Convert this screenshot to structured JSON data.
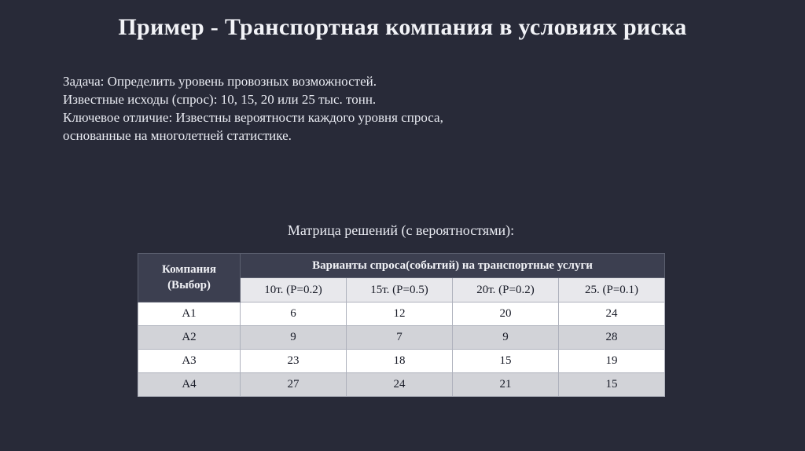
{
  "slide": {
    "title": "Пример - Транспортная компания в условиях риска",
    "body_lines": [
      "Задача: Определить уровень провозных возможностей.",
      "Известные исходы (спрос): 10, 15, 20 или 25 тыс. тонн.",
      "Ключевое отличие: Известны вероятности каждого уровня спроса,",
      "основанные на многолетней статистике."
    ],
    "table_caption": "Матрица решений (с вероятностями):"
  },
  "table": {
    "corner_header": "Компания (Выбор)",
    "group_header": "Варианты спроса(событий) на транспортные услуги",
    "column_headers": [
      "10т. (Р=0.2)",
      "15т. (Р=0.5)",
      "20т. (Р=0.2)",
      "25. (Р=0.1)"
    ],
    "rows": [
      {
        "label": "А1",
        "values": [
          6,
          12,
          20,
          24
        ]
      },
      {
        "label": "А2",
        "values": [
          9,
          7,
          9,
          28
        ]
      },
      {
        "label": "А3",
        "values": [
          23,
          18,
          15,
          19
        ]
      },
      {
        "label": "А4",
        "values": [
          27,
          24,
          21,
          15
        ]
      }
    ]
  },
  "colors": {
    "bg": "#282a38",
    "title_text": "#f2f3f7",
    "body_text": "#e9ebf2",
    "header_bg": "#3c3f50",
    "header_text": "#f2f3f7",
    "subheader_bg": "#e8e8ec",
    "stripe_white": "#ffffff",
    "stripe_gray": "#d2d3d8",
    "cell_text": "#171a26"
  }
}
